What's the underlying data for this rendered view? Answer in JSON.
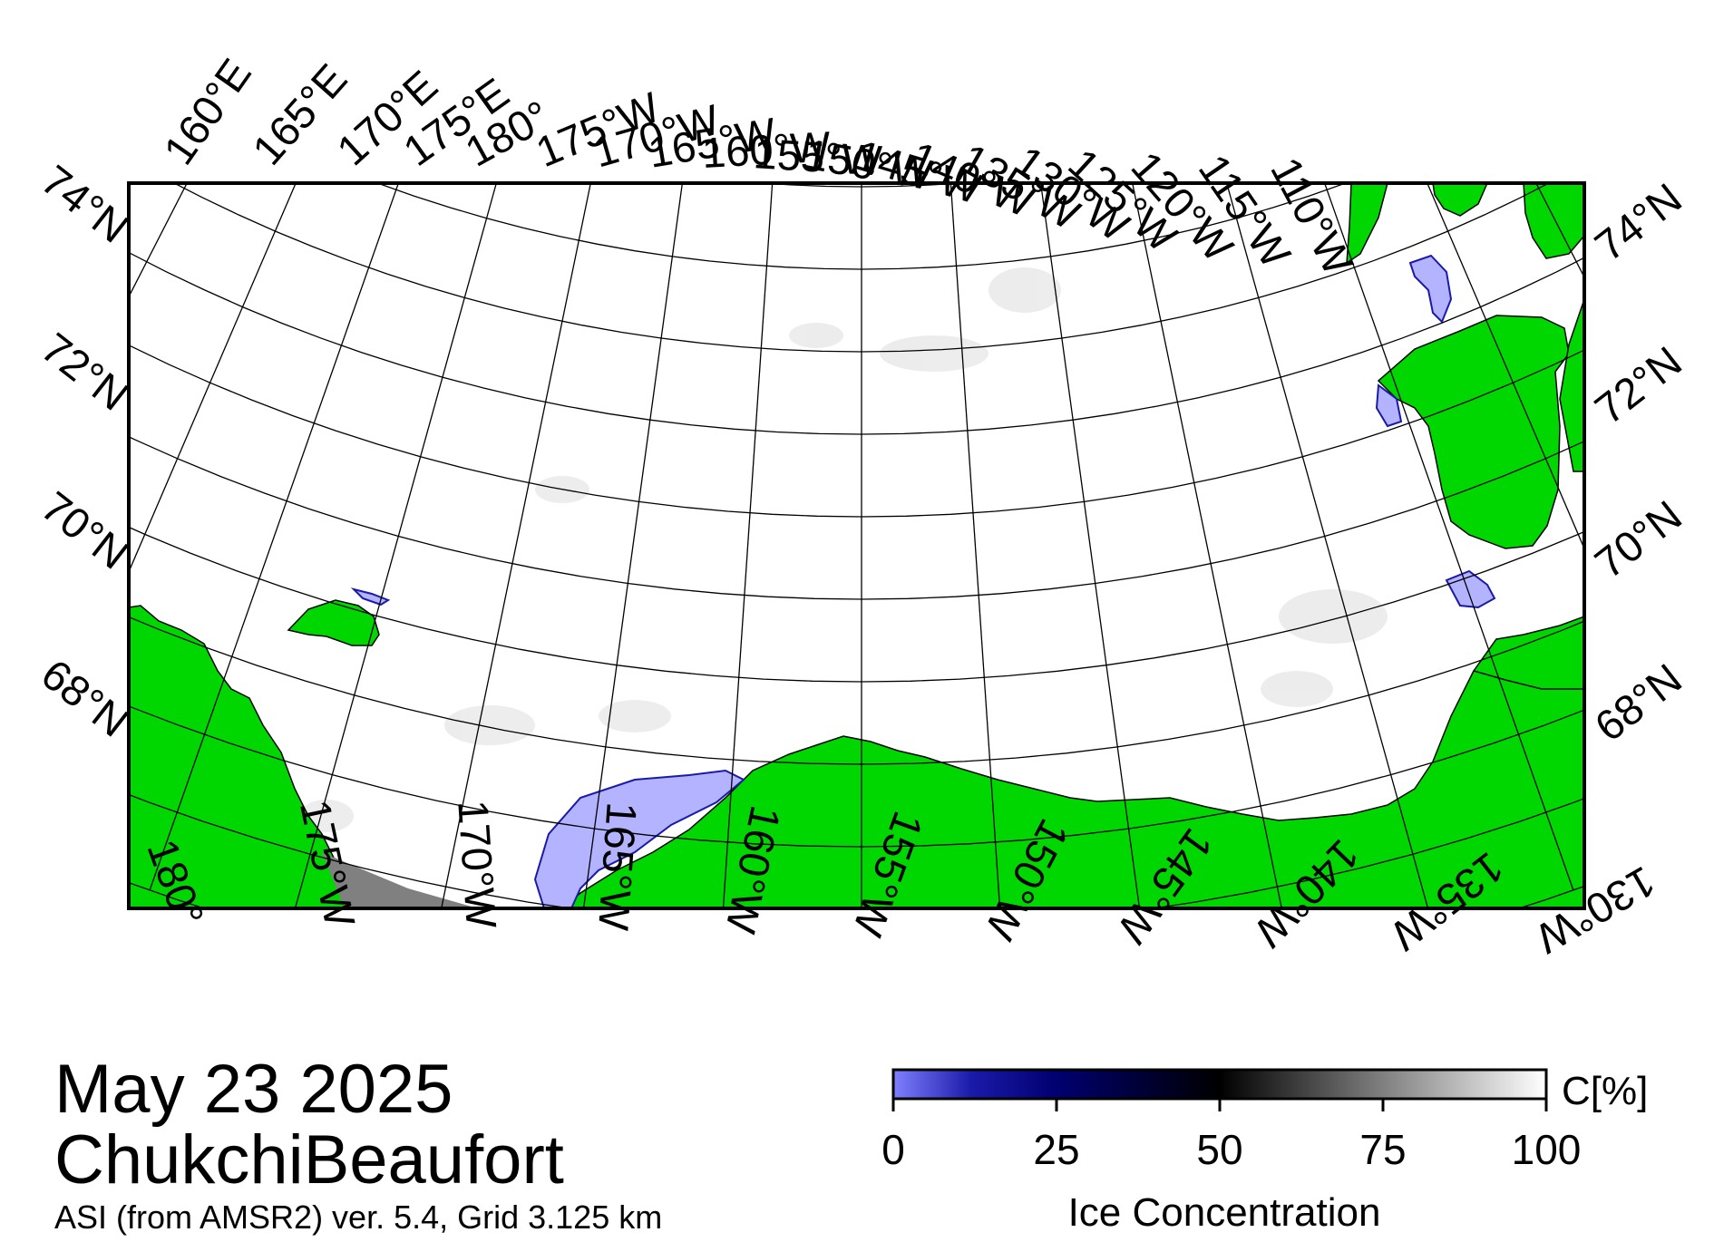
{
  "map": {
    "date": "May 23 2025",
    "region": "ChukchiBeaufort",
    "source": "ASI (from AMSR2) ver. 5.4,  Grid 3.125 km",
    "top_lon_labels": [
      "160°E",
      "165°E",
      "170°E",
      "175°E",
      "180°",
      "175°W",
      "170°W",
      "165°W",
      "160°W",
      "155°W",
      "150°W",
      "145°W",
      "140°W",
      "135°W",
      "130°W",
      "125°W",
      "120°W",
      "115°W",
      "110°W"
    ],
    "bottom_lon_labels": [
      "180°",
      "175°W",
      "170°W",
      "165°W",
      "160°W",
      "155°W",
      "150°W",
      "145°W",
      "140°W",
      "135°W",
      "130°W"
    ],
    "left_lat_labels": [
      "74°N",
      "72°N",
      "70°N",
      "68°N"
    ],
    "right_lat_labels": [
      "74°N",
      "72°N",
      "70°N",
      "68°N"
    ],
    "colors": {
      "land": "#00d700",
      "ocean": "#ffffff",
      "low_ice": "#b3b3ff",
      "no_data": "#808080"
    }
  },
  "colorbar": {
    "label": "Ice Concentration",
    "unit": "C[%]",
    "ticks": [
      "0",
      "25",
      "50",
      "75",
      "100"
    ],
    "gradient_stops": [
      {
        "pct": 0,
        "color": "#7f7fff"
      },
      {
        "pct": 12,
        "color": "#1a1aaa"
      },
      {
        "pct": 25,
        "color": "#000070"
      },
      {
        "pct": 50,
        "color": "#000000"
      },
      {
        "pct": 75,
        "color": "#808080"
      },
      {
        "pct": 100,
        "color": "#ffffff"
      }
    ]
  }
}
